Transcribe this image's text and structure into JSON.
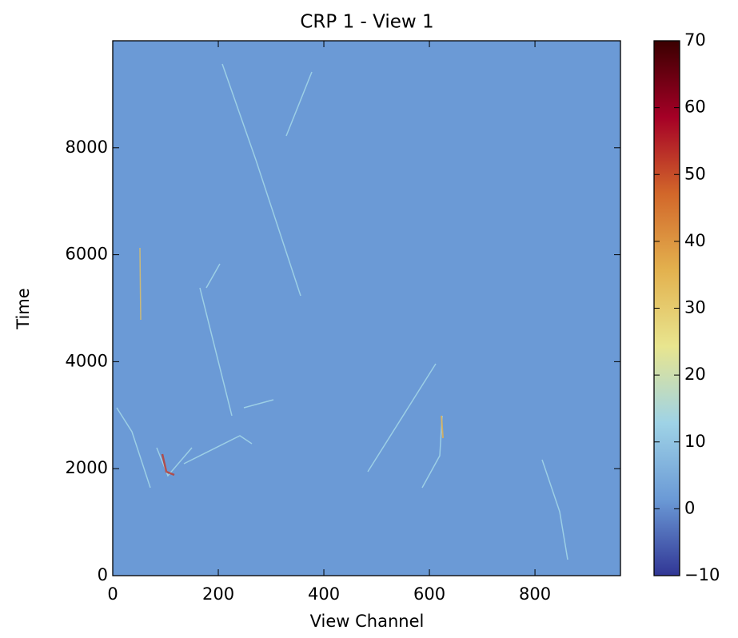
{
  "chart_data": {
    "type": "heatmap",
    "title": "CRP 1 - View 1",
    "x_label": "View Channel",
    "y_label": "Time",
    "xlim": [
      0,
      962
    ],
    "xticks": [
      0,
      200,
      400,
      600,
      800
    ],
    "ylim": [
      0,
      10000
    ],
    "yticks": [
      0,
      2000,
      4000,
      6000,
      8000
    ],
    "background_color": "#6b9ad6",
    "colorbar": {
      "lim": [
        -10,
        70
      ],
      "ticks": [
        {
          "value": -10,
          "label": "−10"
        },
        0,
        10,
        20,
        30,
        40,
        50,
        60,
        70
      ],
      "colormap": [
        "#313695",
        "#6b9ad6",
        "#9fd3e6",
        "#e8e58f",
        "#e3b14e",
        "#d2672a",
        "#a50026",
        "#3a0000"
      ]
    }
  }
}
